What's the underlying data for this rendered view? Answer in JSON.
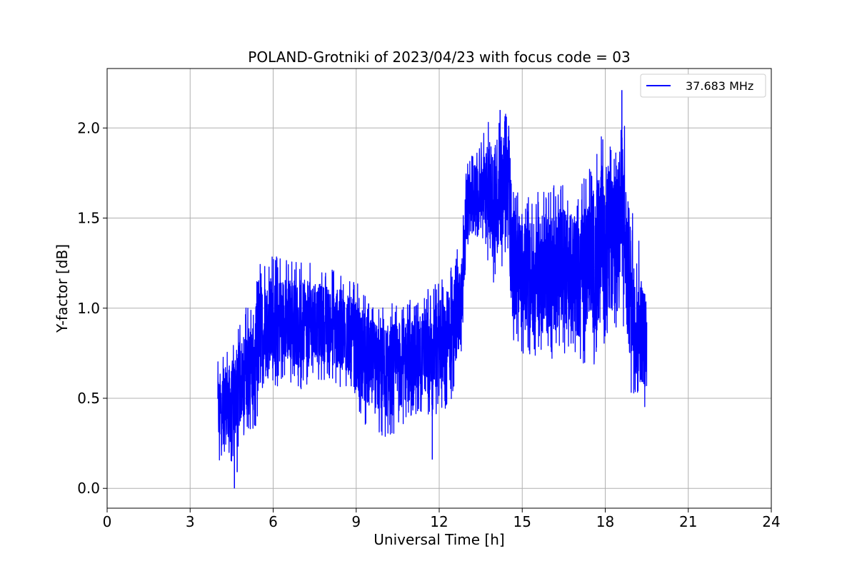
{
  "chart_data": {
    "type": "line",
    "title": "POLAND-Grotniki of 2023/04/23 with focus code = 03",
    "xlabel": "Universal Time [h]",
    "ylabel": "Y-factor [dB]",
    "xlim": [
      0,
      24
    ],
    "ylim": [
      -0.11,
      2.33
    ],
    "x_ticks": [
      0,
      3,
      6,
      9,
      12,
      15,
      18,
      21,
      24
    ],
    "x_tick_labels": [
      "0",
      "3",
      "6",
      "9",
      "12",
      "15",
      "18",
      "21",
      "24"
    ],
    "y_ticks": [
      0.0,
      0.5,
      1.0,
      1.5,
      2.0
    ],
    "y_tick_labels": [
      "0.0",
      "0.5",
      "1.0",
      "1.5",
      "2.0"
    ],
    "grid": true,
    "legend_position": "top-right",
    "series": [
      {
        "name": "37.683 MHz",
        "color": "#0000ff",
        "x_start": 4.0,
        "x_end": 19.5,
        "envelope": {
          "x": [
            4.0,
            4.5,
            5.0,
            5.25,
            5.5,
            6.0,
            6.5,
            7.0,
            7.5,
            8.0,
            8.5,
            9.0,
            9.5,
            10.0,
            10.5,
            11.0,
            11.5,
            12.0,
            12.5,
            12.8,
            13.0,
            13.5,
            14.0,
            14.5,
            14.6,
            15.0,
            15.5,
            16.0,
            16.5,
            17.0,
            17.5,
            18.0,
            18.3,
            18.6,
            18.8,
            19.0,
            19.2,
            19.5
          ],
          "upper": [
            0.72,
            0.8,
            1.0,
            1.05,
            1.25,
            1.3,
            1.27,
            1.27,
            1.24,
            1.22,
            1.2,
            1.15,
            1.05,
            1.0,
            1.05,
            1.05,
            1.1,
            1.15,
            1.25,
            1.45,
            1.8,
            1.95,
            2.1,
            2.1,
            1.75,
            1.6,
            1.65,
            1.68,
            1.7,
            1.65,
            1.8,
            2.05,
            1.85,
            2.21,
            1.8,
            1.6,
            1.4,
            1.15
          ],
          "lower": [
            0.15,
            0.15,
            0.3,
            0.3,
            0.4,
            0.55,
            0.6,
            0.55,
            0.58,
            0.6,
            0.55,
            0.4,
            0.3,
            0.28,
            0.3,
            0.4,
            0.4,
            0.4,
            0.5,
            0.7,
            1.3,
            1.4,
            1.1,
            1.3,
            0.8,
            0.75,
            0.7,
            0.7,
            0.75,
            0.7,
            0.65,
            0.75,
            0.8,
            1.0,
            0.6,
            0.5,
            0.45,
            0.45
          ]
        },
        "notable_points": [
          {
            "x": 4.6,
            "y": 0.0
          },
          {
            "x": 4.7,
            "y": 0.09
          },
          {
            "x": 11.75,
            "y": 0.16
          },
          {
            "x": 14.2,
            "y": 2.1
          },
          {
            "x": 18.6,
            "y": 2.21
          }
        ]
      }
    ]
  }
}
